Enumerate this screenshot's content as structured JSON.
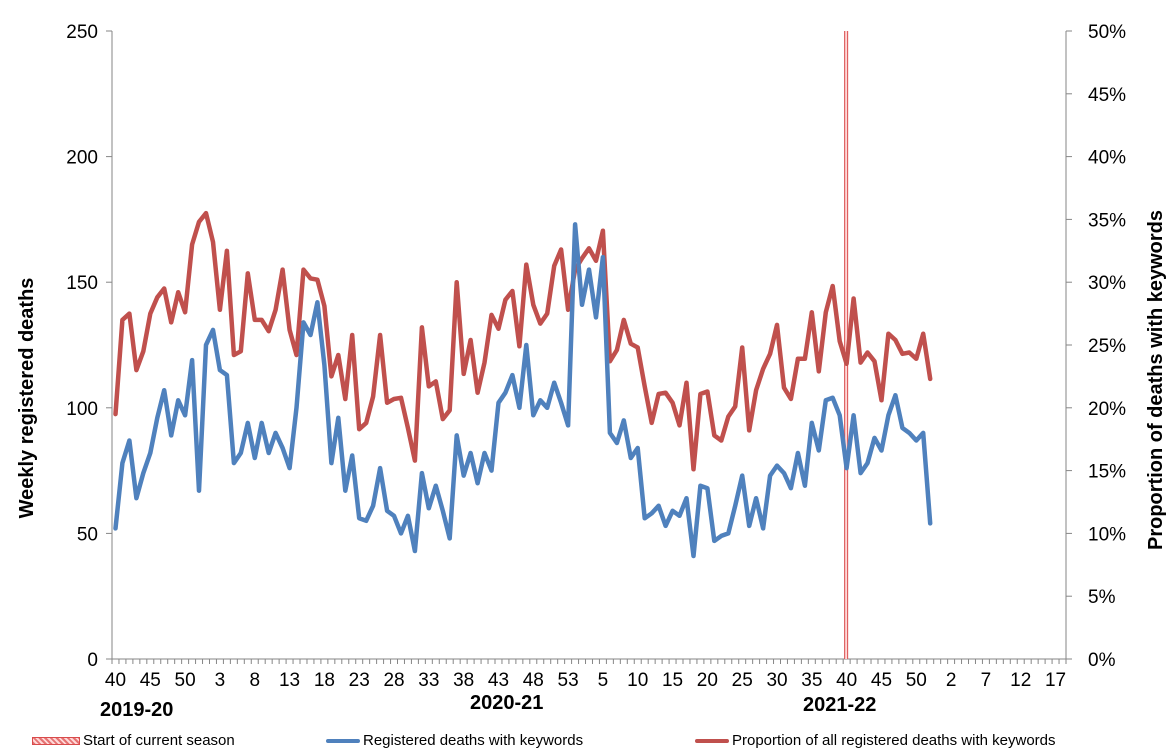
{
  "chart_data": {
    "type": "line",
    "ylabel": "Weekly registered deaths",
    "y2label": "Proportion of deaths with keywords",
    "ylim": [
      0,
      250
    ],
    "y2lim": [
      0,
      50
    ],
    "y_ticks": [
      "0",
      "50",
      "100",
      "150",
      "200",
      "250"
    ],
    "y2_ticks": [
      "0%",
      "5%",
      "10%",
      "15%",
      "20%",
      "25%",
      "30%",
      "35%",
      "40%",
      "45%",
      "50%"
    ],
    "x_tick_labels": [
      "40",
      "45",
      "50",
      "3",
      "8",
      "13",
      "18",
      "23",
      "28",
      "33",
      "38",
      "43",
      "48",
      "53",
      "5",
      "10",
      "15",
      "20",
      "25",
      "30",
      "35",
      "40",
      "45",
      "50",
      "2",
      "7",
      "12",
      "17"
    ],
    "season_labels": [
      "2019-20",
      "2020-21",
      "2021-22"
    ],
    "current_season_start_week_index": 105,
    "colors": {
      "deaths": "#4f81bd",
      "proportion": "#c0504d",
      "season_marker": "#d94b4b"
    },
    "series": [
      {
        "name": "Registered deaths with keywords",
        "axis": "left",
        "color": "#4f81bd",
        "values": [
          52,
          78,
          87,
          64,
          74,
          82,
          96,
          107,
          89,
          103,
          97,
          119,
          67,
          125,
          131,
          115,
          113,
          78,
          82,
          94,
          80,
          94,
          82,
          90,
          84,
          76,
          100,
          134,
          129,
          142,
          117,
          78,
          96,
          67,
          81,
          56,
          55,
          61,
          76,
          59,
          57,
          50,
          57,
          43,
          74,
          60,
          69,
          59,
          48,
          89,
          73,
          82,
          70,
          82,
          75,
          102,
          106,
          113,
          100,
          125,
          97,
          103,
          100,
          110,
          102,
          93,
          173,
          141,
          155,
          136,
          160,
          90,
          86,
          95,
          80,
          84,
          56,
          58,
          61,
          53,
          59,
          57,
          64,
          41,
          69,
          68,
          47,
          49,
          50,
          61,
          73,
          53,
          64,
          52,
          73,
          77,
          74,
          68,
          82,
          69,
          94,
          83,
          103,
          104,
          97,
          76,
          97,
          74,
          78,
          88,
          83,
          97,
          105,
          92,
          90,
          87,
          90,
          54
        ]
      },
      {
        "name": "Proportion of all registered deaths with keywords",
        "axis": "right",
        "color": "#c0504d",
        "values": [
          19.5,
          27,
          27.5,
          23,
          24.5,
          27.5,
          28.8,
          29.5,
          26.8,
          29.2,
          27.6,
          33,
          34.8,
          35.5,
          33.2,
          27.8,
          32.5,
          24.2,
          24.5,
          30.7,
          27,
          27,
          26.1,
          27.8,
          31,
          26.2,
          24.2,
          31,
          30.3,
          30.2,
          28.1,
          22.5,
          24.2,
          20.7,
          25.8,
          18.3,
          18.8,
          20.9,
          25.8,
          20.4,
          20.7,
          20.8,
          18.4,
          15.8,
          26.4,
          21.7,
          22.1,
          19.1,
          19.8,
          30,
          22.7,
          25.4,
          21.2,
          23.6,
          27.4,
          26.3,
          28.6,
          29.3,
          24.9,
          31.4,
          28.2,
          26.7,
          27.5,
          31.3,
          32.6,
          27.8,
          31,
          31.9,
          32.7,
          31.7,
          34.1,
          23.7,
          24.6,
          27,
          25.1,
          24.8,
          21.7,
          18.8,
          21.1,
          21.2,
          20.4,
          18.6,
          22,
          15.1,
          21.1,
          21.3,
          17.8,
          17.4,
          19.3,
          20.1,
          24.8,
          18.2,
          21.4,
          23.1,
          24.3,
          26.6,
          21.6,
          20.7,
          23.9,
          23.9,
          27.6,
          22.9,
          27.6,
          29.7,
          25.3,
          23.5,
          28.7,
          23.6,
          24.4,
          23.7,
          20.6,
          25.9,
          25.4,
          24.3,
          24.4,
          23.9,
          25.9,
          22.3
        ]
      }
    ]
  },
  "legend": {
    "start_season": "Start of current season",
    "deaths": "Registered deaths with keywords",
    "proportion": "Proportion of all registered deaths with keywords"
  }
}
